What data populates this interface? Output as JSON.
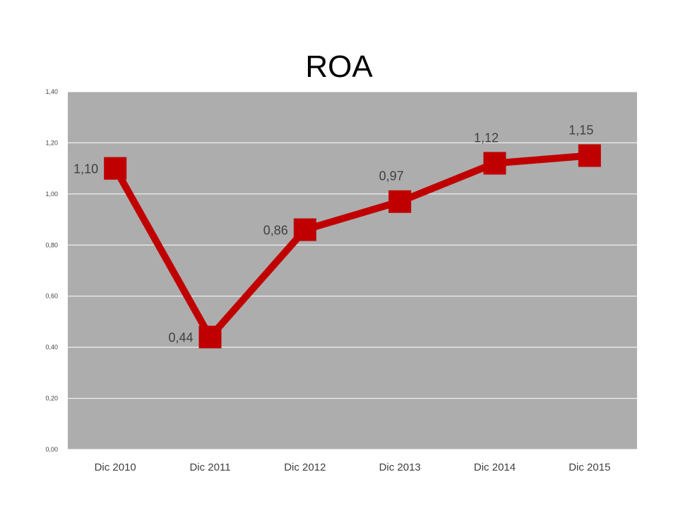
{
  "chart_data": {
    "type": "line",
    "title": "ROA",
    "categories": [
      "Dic 2010",
      "Dic 2011",
      "Dic 2012",
      "Dic 2013",
      "Dic 2014",
      "Dic 2015"
    ],
    "series": [
      {
        "values": [
          1.1,
          0.44,
          0.86,
          0.97,
          1.12,
          1.15
        ],
        "labels": [
          "1,10",
          "0,44",
          "0,86",
          "0,97",
          "1,12",
          "1,15"
        ]
      }
    ],
    "ylim": [
      0,
      1.4
    ],
    "yticks": [
      "0,00",
      "0,20",
      "0,40",
      "0,60",
      "0,80",
      "1,00",
      "1,20",
      "1,40"
    ],
    "grid": true,
    "legend": "none",
    "colors": {
      "line": "#c00000",
      "plot_bg": "#adadad",
      "grid": "#ffffff"
    }
  }
}
